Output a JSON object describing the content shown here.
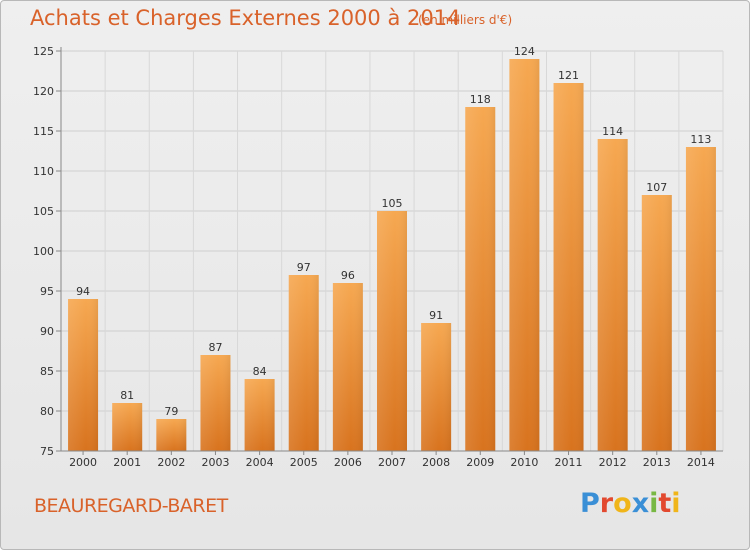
{
  "header": {
    "title": "Achats et Charges Externes 2000 à 2014",
    "unit": "(en milliers d'€)"
  },
  "footer": {
    "commune": "BEAUREGARD-BARET",
    "brand": "Proxiti",
    "brand_letters": [
      {
        "ch": "P",
        "color": "#3a8fd6"
      },
      {
        "ch": "r",
        "color": "#e2492f"
      },
      {
        "ch": "o",
        "color": "#f0b51a"
      },
      {
        "ch": "x",
        "color": "#3a8fd6"
      },
      {
        "ch": "i",
        "color": "#78b843"
      },
      {
        "ch": "t",
        "color": "#e2492f"
      },
      {
        "ch": "i",
        "color": "#f0b51a"
      }
    ]
  },
  "chart_data": {
    "type": "bar",
    "title": "Achats et Charges Externes 2000 à 2014",
    "xlabel": "",
    "ylabel": "",
    "categories": [
      "2000",
      "2001",
      "2002",
      "2003",
      "2004",
      "2005",
      "2006",
      "2007",
      "2008",
      "2009",
      "2010",
      "2011",
      "2012",
      "2013",
      "2014"
    ],
    "values": [
      94,
      81,
      79,
      87,
      84,
      97,
      96,
      105,
      91,
      118,
      124,
      121,
      114,
      107,
      113
    ],
    "ylim": [
      75,
      125
    ],
    "yticks": [
      75,
      80,
      85,
      90,
      95,
      100,
      105,
      110,
      115,
      120,
      125
    ],
    "grid": true,
    "bar_color_top": "#f6a851",
    "bar_color_bottom": "#d8731e"
  }
}
